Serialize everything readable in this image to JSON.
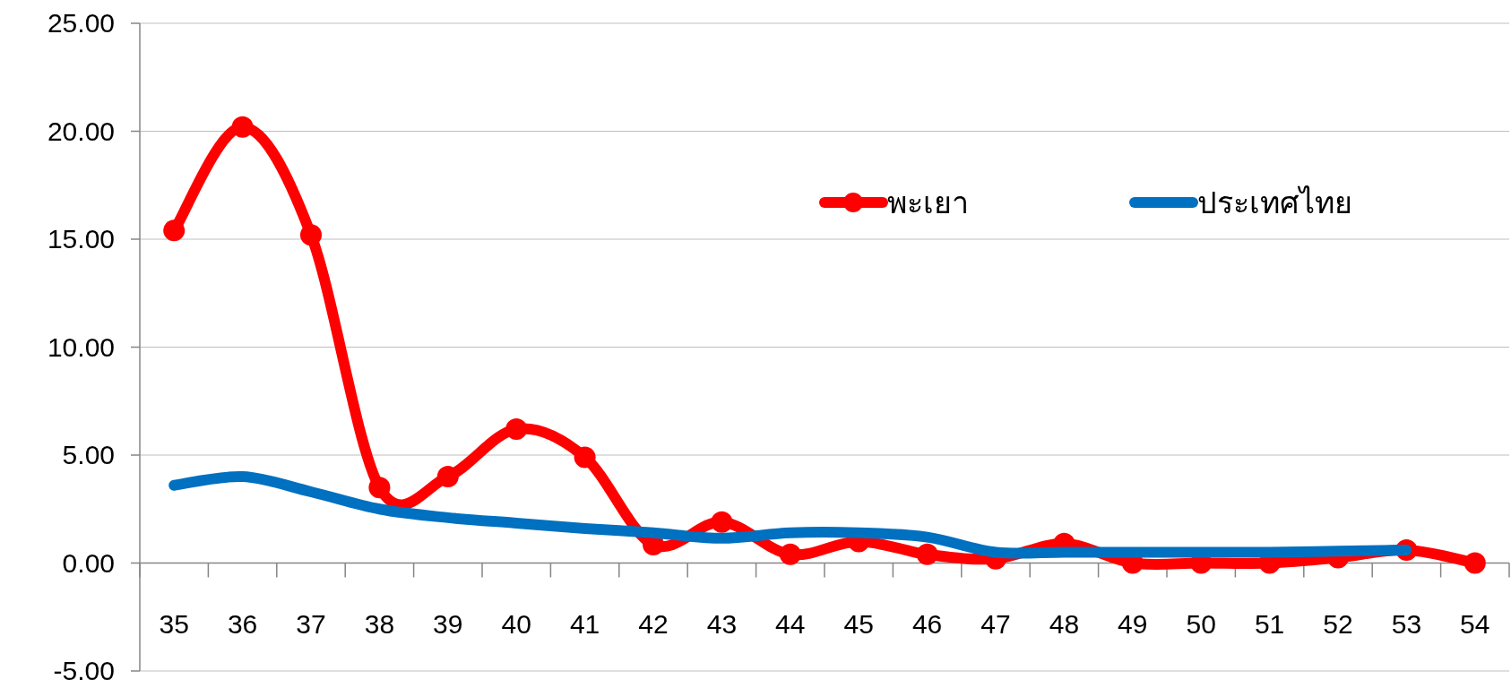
{
  "chart_data": {
    "type": "line",
    "categories": [
      "35",
      "36",
      "37",
      "38",
      "39",
      "40",
      "41",
      "42",
      "43",
      "44",
      "45",
      "46",
      "47",
      "48",
      "49",
      "50",
      "51",
      "52",
      "53",
      "54"
    ],
    "series": [
      {
        "name": "พะเยา",
        "color": "#ff0000",
        "marker": "circle",
        "values": [
          15.4,
          20.2,
          15.2,
          3.5,
          4.0,
          6.2,
          4.9,
          0.85,
          1.9,
          0.4,
          1.0,
          0.4,
          0.2,
          0.9,
          0,
          0,
          0,
          0.25,
          0.6,
          0
        ]
      },
      {
        "name": "ประเทศไทย",
        "color": "#0070c0",
        "marker": "none",
        "values": [
          3.6,
          4.0,
          3.3,
          2.5,
          2.1,
          1.85,
          1.6,
          1.4,
          1.15,
          1.4,
          1.4,
          1.2,
          0.5,
          0.5,
          0.5,
          0.5,
          0.5,
          0.55,
          0.6,
          null
        ]
      }
    ],
    "ylim": [
      -5,
      25
    ],
    "yticks": [
      {
        "value": -5,
        "label": "-5.00"
      },
      {
        "value": 0,
        "label": "0.00"
      },
      {
        "value": 5,
        "label": "5.00"
      },
      {
        "value": 10,
        "label": "10.00"
      },
      {
        "value": 15,
        "label": "15.00"
      },
      {
        "value": 20,
        "label": "20.00"
      },
      {
        "value": 25,
        "label": "25.00"
      }
    ],
    "grid": "y",
    "legend": "top right"
  }
}
